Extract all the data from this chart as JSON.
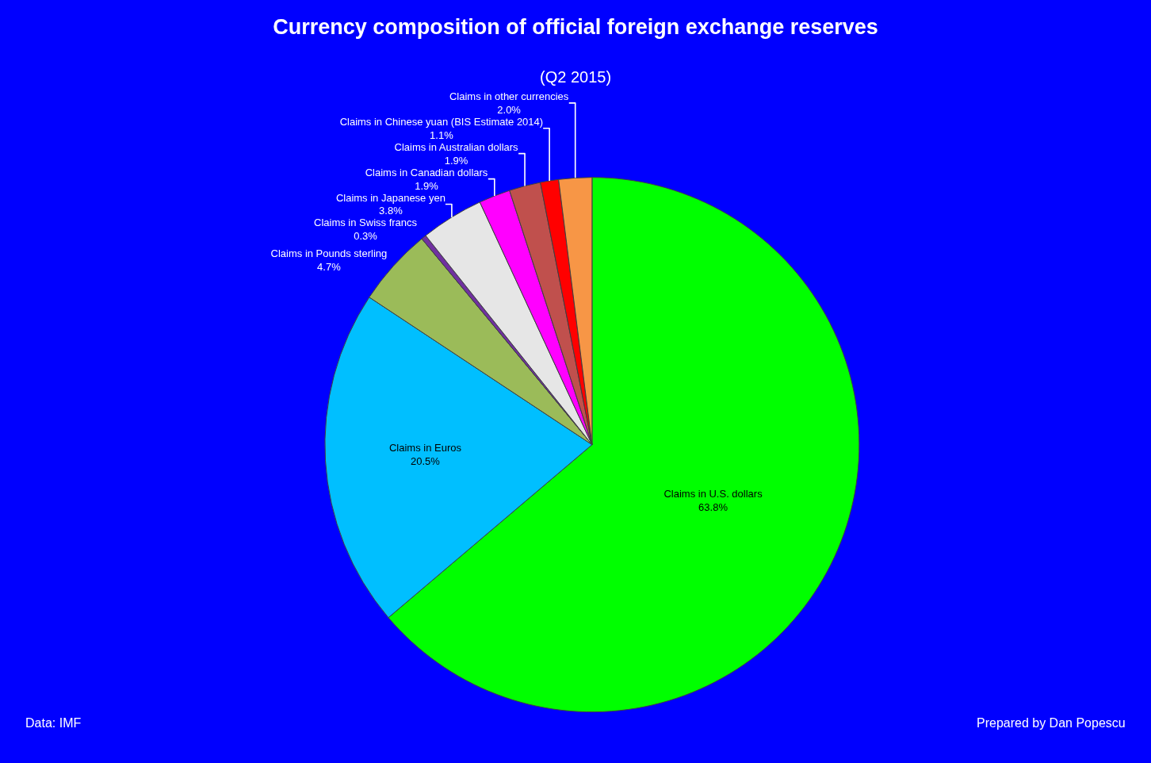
{
  "chart_data": {
    "type": "pie",
    "title": "Currency composition of official foreign exchange reserves",
    "subtitle": "(Q2 2015)",
    "categories": [
      "Claims in U.S. dollars",
      "Claims in Euros",
      "Claims in Pounds sterling",
      "Claims in Swiss francs",
      "Claims in Japanese yen",
      "Claims in Canadian dollars",
      "Claims in Australian dollars",
      "Claims in Chinese yuan (BIS Estimate 2014)",
      "Claims in other currencies"
    ],
    "values": [
      63.8,
      20.5,
      4.7,
      0.3,
      3.8,
      1.9,
      1.9,
      1.1,
      2.0
    ],
    "value_labels": [
      "63.8%",
      "20.5%",
      "4.7%",
      "0.3%",
      "3.8%",
      "1.9%",
      "1.9%",
      "1.1%",
      "2.0%"
    ],
    "colors": [
      "#00ff00",
      "#00bfff",
      "#9bbb59",
      "#7030a0",
      "#e6e6e6",
      "#ff00ff",
      "#c0504d",
      "#ff0000",
      "#f79646"
    ],
    "legend": false,
    "annotations": [
      "Data: IMF",
      "Prepared by Dan Popescu"
    ]
  }
}
